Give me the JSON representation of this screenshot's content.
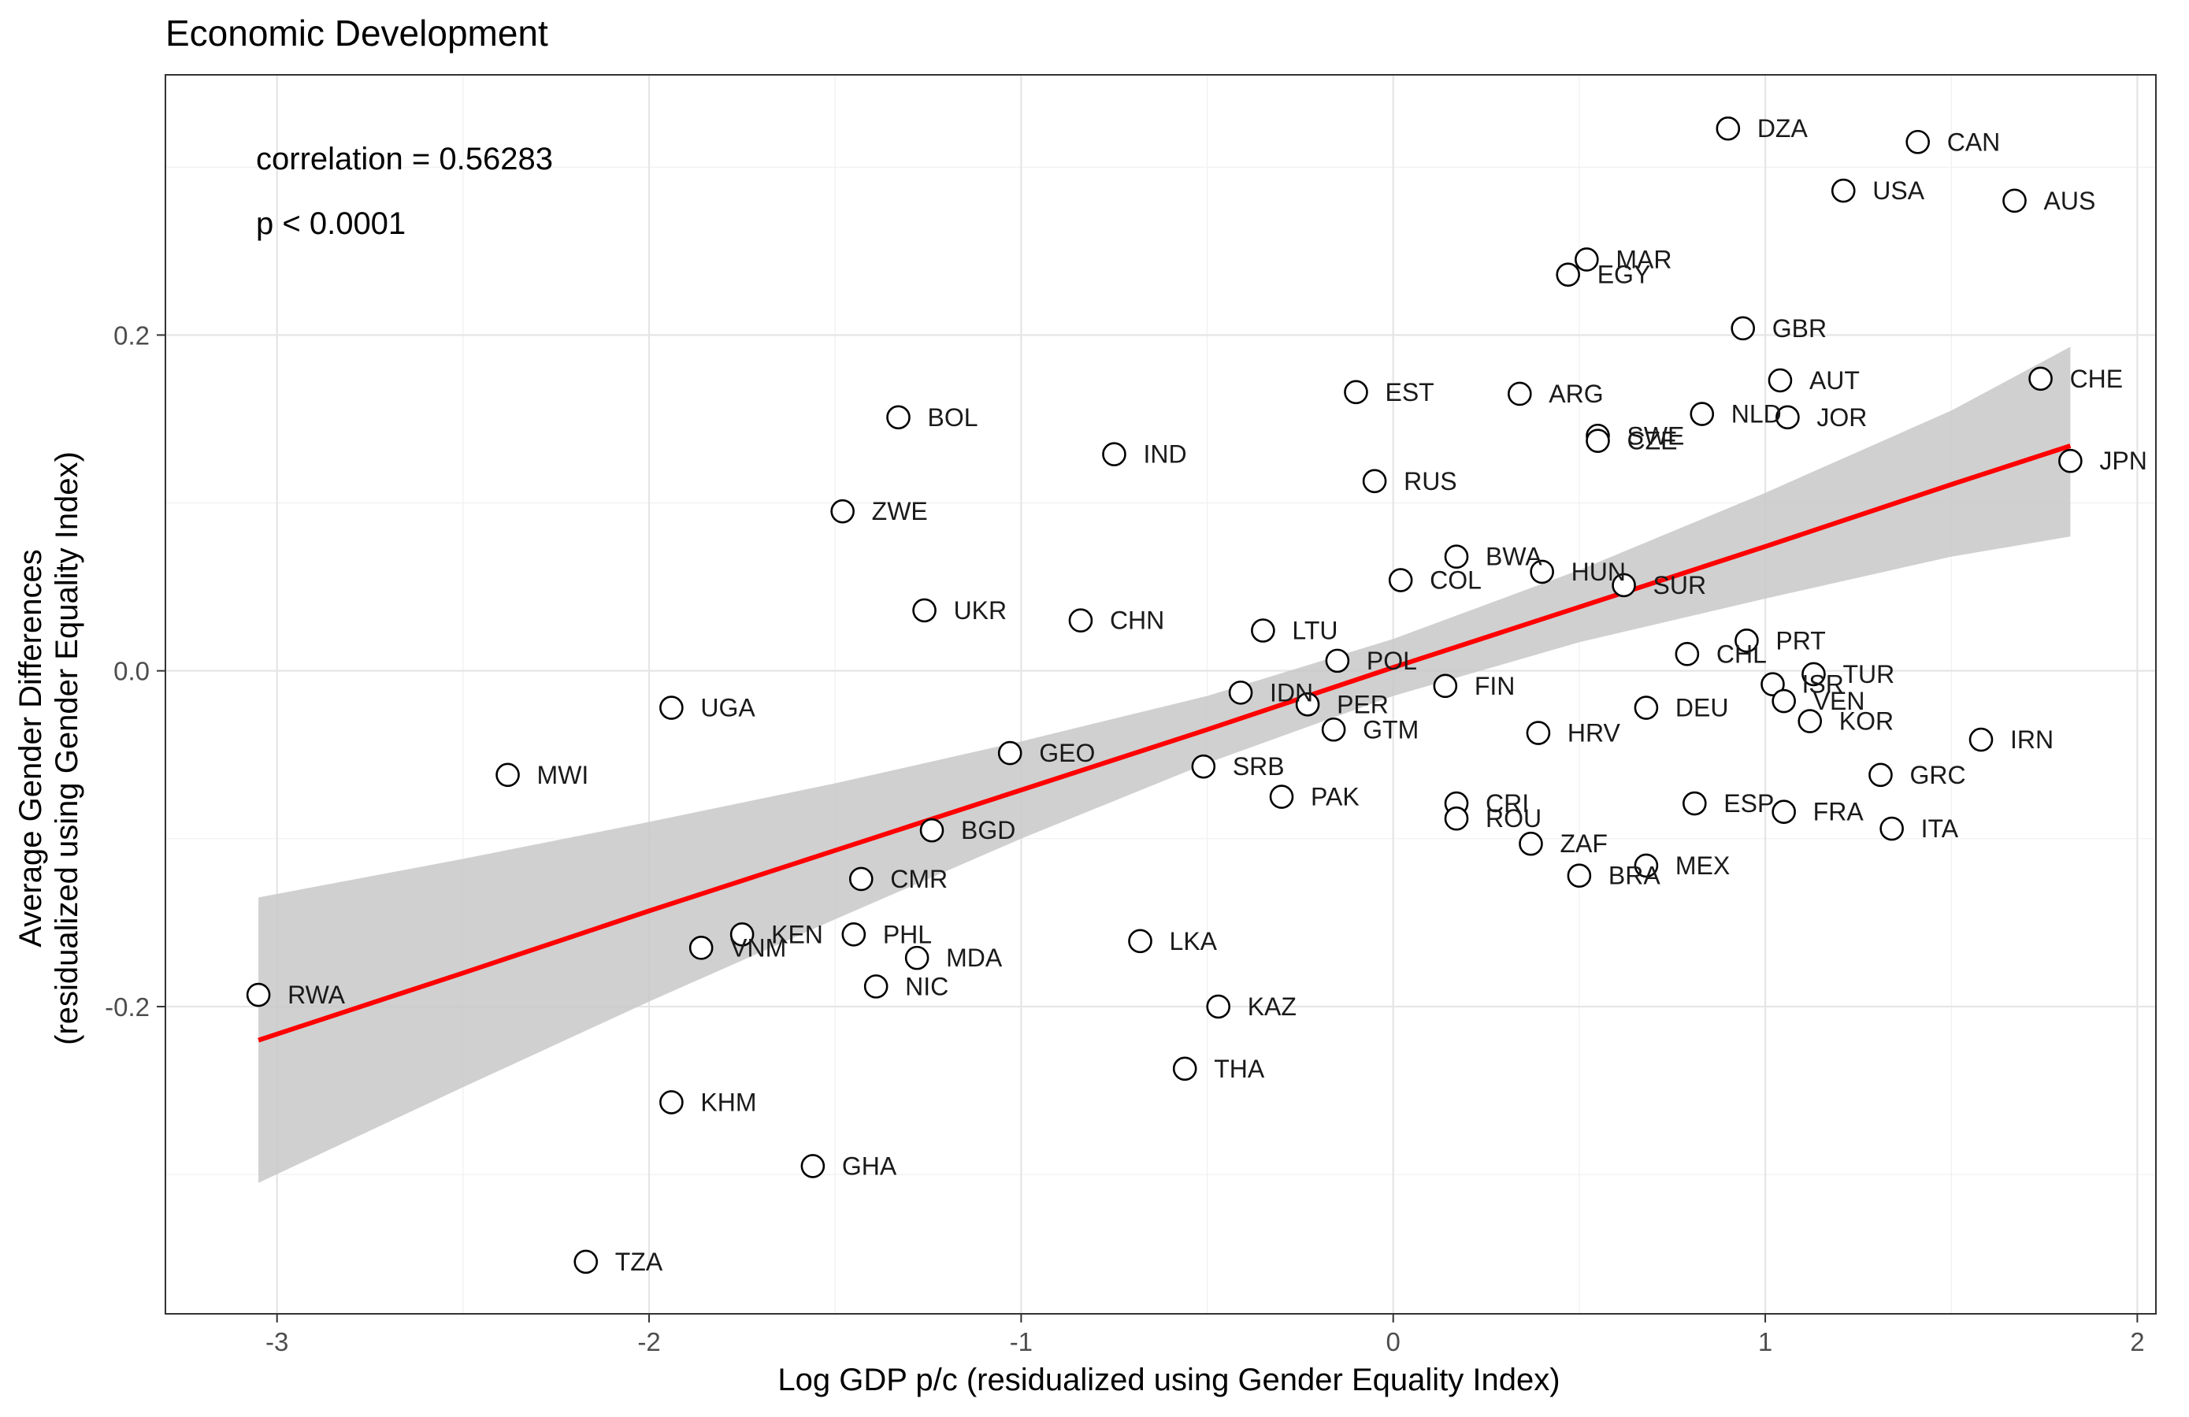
{
  "chart_data": {
    "type": "scatter",
    "title": "Economic Development",
    "xlabel": "Log GDP p/c (residualized using Gender Equality Index)",
    "ylabel": [
      "Average Gender Differences",
      "(residualized using Gender Equality Index)"
    ],
    "annotations": [
      "correlation = 0.56283",
      "p < 0.0001"
    ],
    "xlim": [
      -3.3,
      2.05
    ],
    "ylim": [
      -0.383,
      0.355
    ],
    "xticks": [
      -3,
      -2,
      -1,
      0,
      1,
      2
    ],
    "xtick_labels": [
      "-3",
      "-2",
      "-1",
      "0",
      "1",
      "2"
    ],
    "yticks": [
      -0.2,
      0.0,
      0.2
    ],
    "ytick_labels": [
      "-0.2",
      "0.0",
      "0.2"
    ],
    "grid": true,
    "fit": {
      "color": "#ff0000",
      "band_color": "#c8c8c8",
      "x": [
        -3.05,
        -2.5,
        -2.0,
        -1.5,
        -1.0,
        -0.5,
        0.0,
        0.5,
        1.0,
        1.5,
        1.82
      ],
      "y": [
        -0.22,
        -0.18,
        -0.143,
        -0.107,
        -0.071,
        -0.035,
        0.002,
        0.038,
        0.074,
        0.111,
        0.134
      ],
      "lower": [
        -0.305,
        -0.248,
        -0.197,
        -0.148,
        -0.1,
        -0.055,
        -0.015,
        0.017,
        0.043,
        0.068,
        0.08
      ],
      "upper": [
        -0.135,
        -0.112,
        -0.09,
        -0.067,
        -0.042,
        -0.015,
        0.019,
        0.06,
        0.106,
        0.155,
        0.193
      ]
    },
    "points": [
      {
        "label": "DZA",
        "x": 0.9,
        "y": 0.323
      },
      {
        "label": "CAN",
        "x": 1.41,
        "y": 0.315
      },
      {
        "label": "USA",
        "x": 1.21,
        "y": 0.286
      },
      {
        "label": "AUS",
        "x": 1.67,
        "y": 0.28
      },
      {
        "label": "MAR",
        "x": 0.52,
        "y": 0.245
      },
      {
        "label": "EGY",
        "x": 0.47,
        "y": 0.236
      },
      {
        "label": "GBR",
        "x": 0.94,
        "y": 0.204
      },
      {
        "label": "AUT",
        "x": 1.04,
        "y": 0.173
      },
      {
        "label": "CHE",
        "x": 1.74,
        "y": 0.174
      },
      {
        "label": "EST",
        "x": -0.1,
        "y": 0.166
      },
      {
        "label": "ARG",
        "x": 0.34,
        "y": 0.165
      },
      {
        "label": "NLD",
        "x": 0.83,
        "y": 0.153
      },
      {
        "label": "JOR",
        "x": 1.06,
        "y": 0.151
      },
      {
        "label": "BOL",
        "x": -1.33,
        "y": 0.151
      },
      {
        "label": "SWE",
        "x": 0.55,
        "y": 0.14
      },
      {
        "label": "CZE",
        "x": 0.55,
        "y": 0.137
      },
      {
        "label": "IND",
        "x": -0.75,
        "y": 0.129
      },
      {
        "label": "JPN",
        "x": 1.82,
        "y": 0.125
      },
      {
        "label": "RUS",
        "x": -0.05,
        "y": 0.113
      },
      {
        "label": "ZWE",
        "x": -1.48,
        "y": 0.095
      },
      {
        "label": "BWA",
        "x": 0.17,
        "y": 0.068
      },
      {
        "label": "HUN",
        "x": 0.4,
        "y": 0.059
      },
      {
        "label": "COL",
        "x": 0.02,
        "y": 0.054
      },
      {
        "label": "SUR",
        "x": 0.62,
        "y": 0.051
      },
      {
        "label": "UKR",
        "x": -1.26,
        "y": 0.036
      },
      {
        "label": "CHN",
        "x": -0.84,
        "y": 0.03
      },
      {
        "label": "LTU",
        "x": -0.35,
        "y": 0.024
      },
      {
        "label": "PRT",
        "x": 0.95,
        "y": 0.018
      },
      {
        "label": "CHL",
        "x": 0.79,
        "y": 0.01
      },
      {
        "label": "POL",
        "x": -0.15,
        "y": 0.006
      },
      {
        "label": "TUR",
        "x": 1.13,
        "y": -0.002
      },
      {
        "label": "ISR",
        "x": 1.02,
        "y": -0.008
      },
      {
        "label": "FIN",
        "x": 0.14,
        "y": -0.009
      },
      {
        "label": "IDN",
        "x": -0.41,
        "y": -0.013
      },
      {
        "label": "VEN",
        "x": 1.05,
        "y": -0.018
      },
      {
        "label": "PER",
        "x": -0.23,
        "y": -0.02
      },
      {
        "label": "DEU",
        "x": 0.68,
        "y": -0.022
      },
      {
        "label": "UGA",
        "x": -1.94,
        "y": -0.022
      },
      {
        "label": "KOR",
        "x": 1.12,
        "y": -0.03
      },
      {
        "label": "GTM",
        "x": -0.16,
        "y": -0.035
      },
      {
        "label": "HRV",
        "x": 0.39,
        "y": -0.037
      },
      {
        "label": "IRN",
        "x": 1.58,
        "y": -0.041
      },
      {
        "label": "GEO",
        "x": -1.03,
        "y": -0.049
      },
      {
        "label": "SRB",
        "x": -0.51,
        "y": -0.057
      },
      {
        "label": "MWI",
        "x": -2.38,
        "y": -0.062
      },
      {
        "label": "GRC",
        "x": 1.31,
        "y": -0.062
      },
      {
        "label": "PAK",
        "x": -0.3,
        "y": -0.075
      },
      {
        "label": "CRI",
        "x": 0.17,
        "y": -0.079
      },
      {
        "label": "ESP",
        "x": 0.81,
        "y": -0.079
      },
      {
        "label": "FRA",
        "x": 1.05,
        "y": -0.084
      },
      {
        "label": "ROU",
        "x": 0.17,
        "y": -0.088
      },
      {
        "label": "ITA",
        "x": 1.34,
        "y": -0.094
      },
      {
        "label": "BGD",
        "x": -1.24,
        "y": -0.095
      },
      {
        "label": "ZAF",
        "x": 0.37,
        "y": -0.103
      },
      {
        "label": "MEX",
        "x": 0.68,
        "y": -0.116
      },
      {
        "label": "BRA",
        "x": 0.5,
        "y": -0.122
      },
      {
        "label": "CMR",
        "x": -1.43,
        "y": -0.124
      },
      {
        "label": "KEN",
        "x": -1.75,
        "y": -0.157
      },
      {
        "label": "PHL",
        "x": -1.45,
        "y": -0.157
      },
      {
        "label": "LKA",
        "x": -0.68,
        "y": -0.161
      },
      {
        "label": "VNM",
        "x": -1.86,
        "y": -0.165
      },
      {
        "label": "MDA",
        "x": -1.28,
        "y": -0.171
      },
      {
        "label": "NIC",
        "x": -1.39,
        "y": -0.188
      },
      {
        "label": "RWA",
        "x": -3.05,
        "y": -0.193
      },
      {
        "label": "KAZ",
        "x": -0.47,
        "y": -0.2
      },
      {
        "label": "THA",
        "x": -0.56,
        "y": -0.237
      },
      {
        "label": "KHM",
        "x": -1.94,
        "y": -0.257
      },
      {
        "label": "GHA",
        "x": -1.56,
        "y": -0.295
      },
      {
        "label": "TZA",
        "x": -2.17,
        "y": -0.352
      }
    ]
  }
}
